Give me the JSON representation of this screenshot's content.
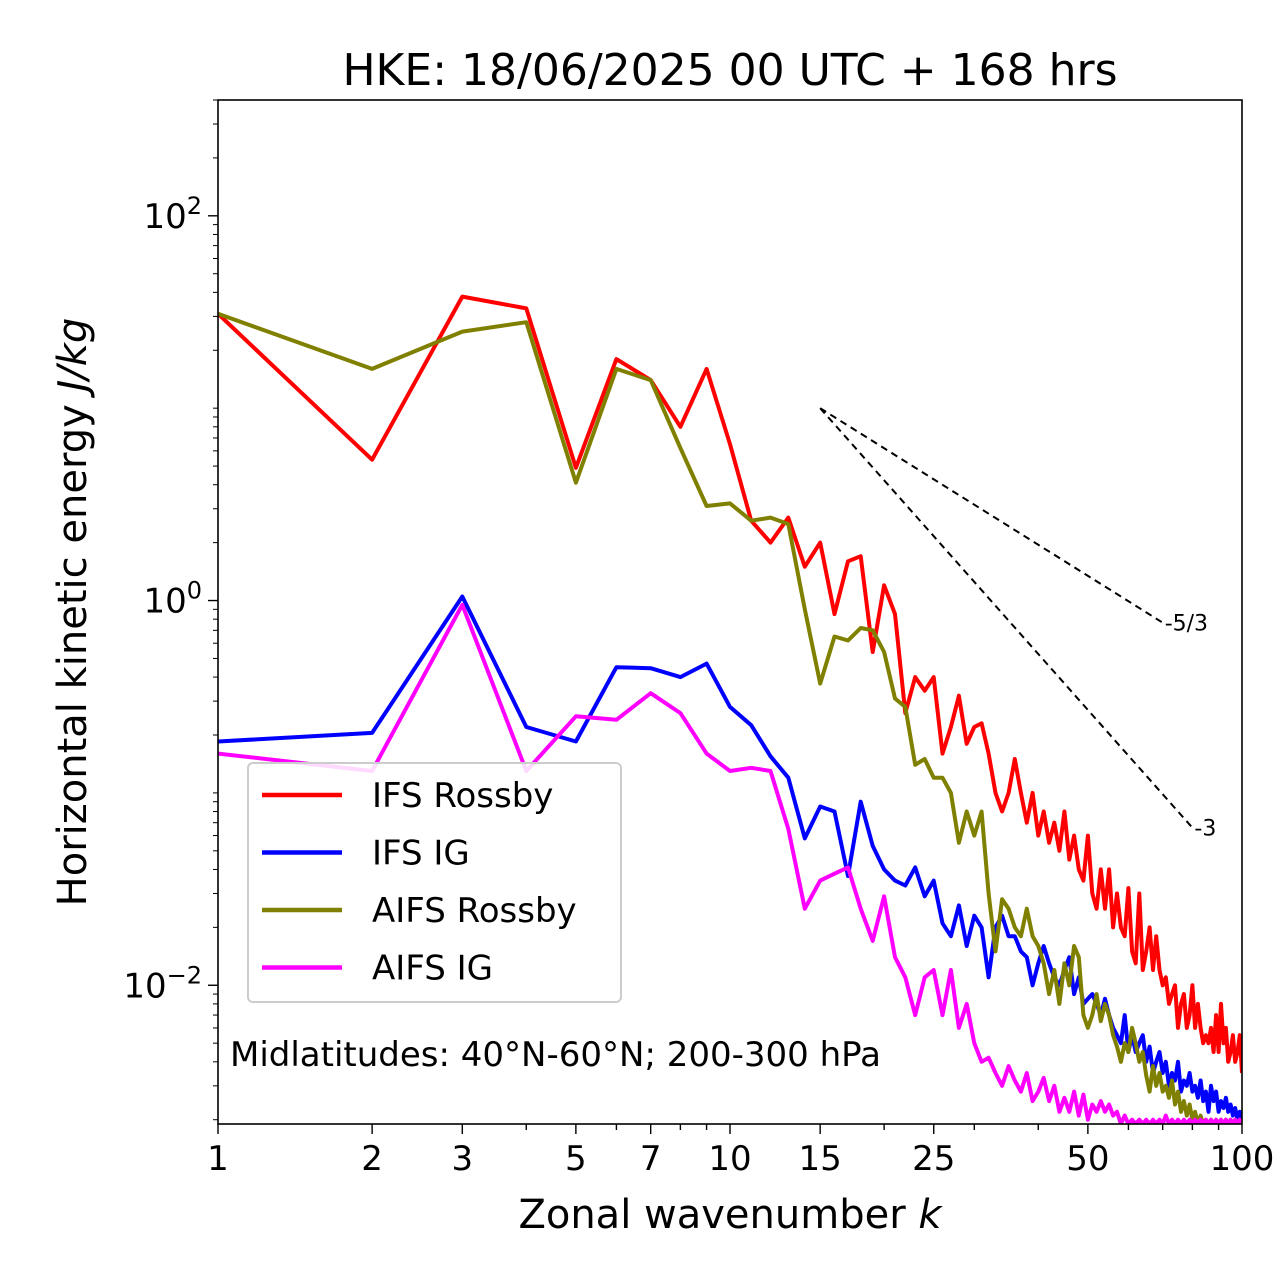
{
  "chart_data": {
    "type": "line",
    "title": "HKE: 18/06/2025 00 UTC + 168 hrs",
    "xlabel_text": "Zonal wavenumber ",
    "xlabel_italic": "k",
    "ylabel_text": "Horizontal kinetic energy ",
    "ylabel_italic": "J/kg",
    "xscale": "log",
    "yscale": "log",
    "xlim": [
      1,
      100
    ],
    "ylim": [
      0.0019,
      400
    ],
    "x_ticks": [
      1,
      2,
      3,
      5,
      7,
      10,
      15,
      25,
      50,
      100
    ],
    "x_tick_labels": [
      "1",
      "2",
      "3",
      "5",
      "7",
      "10",
      "15",
      "25",
      "50",
      "100"
    ],
    "y_ticks": [
      {
        "value": 100,
        "base": "10",
        "exp": "2"
      },
      {
        "value": 1,
        "base": "10",
        "exp": "0"
      },
      {
        "value": 0.01,
        "base": "10",
        "exp": "−2"
      }
    ],
    "annotation": "Midlatitudes: 40°N-60°N; 200-300 hPa",
    "legend_position": "lower-left",
    "reference_slopes": [
      {
        "label": "-5/3",
        "slope": -1.6667,
        "x_start": 15,
        "y_start": 10,
        "x_end": 70
      },
      {
        "label": "-3",
        "slope": -3,
        "x_start": 15,
        "y_start": 10,
        "x_end": 80
      }
    ],
    "series": [
      {
        "name": "IFS Rossby",
        "color": "#ff0000",
        "x": [
          1,
          2,
          3,
          4,
          5,
          6,
          7,
          8,
          9,
          10,
          11,
          12,
          13,
          14,
          15,
          16,
          17,
          18,
          19,
          20,
          21,
          22,
          23,
          24,
          25,
          26,
          27,
          28,
          29,
          30,
          31,
          32,
          33,
          34,
          35,
          36,
          37,
          38,
          39,
          40,
          41,
          42,
          43,
          44,
          45,
          46,
          47,
          48,
          49,
          50,
          51,
          52,
          53,
          54,
          55,
          56,
          57,
          58,
          59,
          60,
          61,
          62,
          63,
          64,
          65,
          66,
          67,
          68,
          69,
          70,
          71,
          72,
          73,
          74,
          75,
          76,
          77,
          78,
          79,
          80,
          81,
          82,
          83,
          84,
          85,
          86,
          87,
          88,
          89,
          90,
          91,
          92,
          93,
          94,
          95,
          96,
          97,
          98,
          99,
          100
        ],
        "y": [
          31,
          5.4,
          38,
          33,
          4.9,
          18,
          14,
          8.0,
          16,
          6.5,
          2.6,
          2.0,
          2.7,
          1.5,
          2.0,
          0.85,
          1.6,
          1.7,
          0.54,
          1.2,
          0.85,
          0.26,
          0.4,
          0.34,
          0.4,
          0.16,
          0.22,
          0.32,
          0.18,
          0.22,
          0.23,
          0.16,
          0.1,
          0.08,
          0.1,
          0.15,
          0.1,
          0.07,
          0.1,
          0.06,
          0.08,
          0.055,
          0.07,
          0.05,
          0.08,
          0.045,
          0.06,
          0.04,
          0.035,
          0.06,
          0.03,
          0.025,
          0.04,
          0.025,
          0.04,
          0.02,
          0.03,
          0.02,
          0.018,
          0.032,
          0.015,
          0.013,
          0.03,
          0.012,
          0.015,
          0.02,
          0.012,
          0.018,
          0.012,
          0.01,
          0.011,
          0.008,
          0.009,
          0.01,
          0.006,
          0.008,
          0.009,
          0.006,
          0.007,
          0.01,
          0.006,
          0.008,
          0.006,
          0.005,
          0.0055,
          0.005,
          0.006,
          0.0045,
          0.007,
          0.0045,
          0.008,
          0.005,
          0.006,
          0.004,
          0.0045,
          0.0055,
          0.004,
          0.0045,
          0.0055,
          0.0035
        ]
      },
      {
        "name": "IFS IG",
        "color": "#0000ff",
        "x": [
          1,
          2,
          3,
          4,
          5,
          6,
          7,
          8,
          9,
          10,
          11,
          12,
          13,
          14,
          15,
          16,
          17,
          18,
          19,
          20,
          21,
          22,
          23,
          24,
          25,
          26,
          27,
          28,
          29,
          30,
          31,
          32,
          33,
          34,
          35,
          36,
          37,
          38,
          39,
          40,
          41,
          42,
          43,
          44,
          45,
          46,
          47,
          48,
          49,
          50,
          51,
          52,
          53,
          54,
          55,
          56,
          57,
          58,
          59,
          60,
          61,
          62,
          63,
          64,
          65,
          66,
          67,
          68,
          69,
          70,
          71,
          72,
          73,
          74,
          75,
          76,
          77,
          78,
          79,
          80,
          81,
          82,
          83,
          84,
          85,
          86,
          87,
          88,
          89,
          90,
          91,
          92,
          93,
          94,
          95,
          96,
          97,
          98,
          99,
          100
        ],
        "y": [
          0.185,
          0.205,
          1.05,
          0.22,
          0.185,
          0.45,
          0.445,
          0.4,
          0.47,
          0.28,
          0.225,
          0.155,
          0.12,
          0.058,
          0.085,
          0.08,
          0.037,
          0.09,
          0.053,
          0.04,
          0.035,
          0.033,
          0.041,
          0.029,
          0.035,
          0.021,
          0.018,
          0.026,
          0.016,
          0.023,
          0.02,
          0.011,
          0.02,
          0.023,
          0.018,
          0.018,
          0.015,
          0.014,
          0.01,
          0.013,
          0.016,
          0.013,
          0.011,
          0.01,
          0.012,
          0.014,
          0.009,
          0.011,
          0.008,
          0.0085,
          0.009,
          0.008,
          0.007,
          0.0085,
          0.007,
          0.006,
          0.0055,
          0.005,
          0.007,
          0.0045,
          0.0055,
          0.0045,
          0.005,
          0.0055,
          0.004,
          0.0048,
          0.0035,
          0.004,
          0.0045,
          0.0035,
          0.004,
          0.003,
          0.0035,
          0.0032,
          0.004,
          0.0028,
          0.0032,
          0.003,
          0.0035,
          0.0028,
          0.003,
          0.0026,
          0.0032,
          0.0025,
          0.0028,
          0.0022,
          0.003,
          0.0025,
          0.0028,
          0.0022,
          0.0025,
          0.0023,
          0.0026,
          0.0022,
          0.0024,
          0.0021,
          0.0023,
          0.002,
          0.0022,
          0.0019
        ]
      },
      {
        "name": "AIFS Rossby",
        "color": "#808000",
        "x": [
          1,
          2,
          3,
          4,
          5,
          6,
          7,
          8,
          9,
          10,
          11,
          12,
          13,
          14,
          15,
          16,
          17,
          18,
          19,
          20,
          21,
          22,
          23,
          24,
          25,
          26,
          27,
          28,
          29,
          30,
          31,
          32,
          33,
          34,
          35,
          36,
          37,
          38,
          39,
          40,
          41,
          42,
          43,
          44,
          45,
          46,
          47,
          48,
          49,
          50,
          51,
          52,
          53,
          54,
          55,
          56,
          57,
          58,
          59,
          60,
          61,
          62,
          63,
          64,
          65,
          66,
          67,
          68,
          69,
          70,
          71,
          72,
          73,
          74,
          75,
          76,
          77,
          78,
          79,
          80,
          81,
          82,
          83,
          84,
          85,
          86,
          87,
          88,
          89,
          90,
          91,
          92,
          93,
          94,
          95,
          96,
          97,
          98,
          99,
          100
        ],
        "y": [
          31,
          16,
          25,
          28,
          4.1,
          16,
          14,
          6.2,
          3.1,
          3.2,
          2.6,
          2.7,
          2.5,
          0.9,
          0.37,
          0.65,
          0.62,
          0.72,
          0.7,
          0.54,
          0.31,
          0.28,
          0.14,
          0.15,
          0.12,
          0.12,
          0.1,
          0.055,
          0.08,
          0.06,
          0.08,
          0.03,
          0.015,
          0.028,
          0.025,
          0.02,
          0.018,
          0.025,
          0.018,
          0.016,
          0.013,
          0.009,
          0.012,
          0.008,
          0.013,
          0.01,
          0.016,
          0.014,
          0.007,
          0.006,
          0.007,
          0.009,
          0.0065,
          0.008,
          0.007,
          0.0055,
          0.0048,
          0.004,
          0.005,
          0.0045,
          0.006,
          0.005,
          0.004,
          0.0045,
          0.0034,
          0.0028,
          0.0038,
          0.003,
          0.0035,
          0.0028,
          0.003,
          0.0026,
          0.0032,
          0.0024,
          0.0028,
          0.0022,
          0.0025,
          0.0021,
          0.0024,
          0.002,
          0.0022,
          0.0019,
          0.0021,
          0.0019,
          0.002,
          0.0019,
          0.002,
          0.0019,
          0.002,
          0.0019,
          0.002,
          0.0019,
          0.002,
          0.0019,
          0.002,
          0.0019,
          0.002,
          0.0019,
          0.002,
          0.0019
        ]
      },
      {
        "name": "AIFS IG",
        "color": "#ff00ff",
        "x": [
          1,
          2,
          3,
          4,
          5,
          6,
          7,
          8,
          9,
          10,
          11,
          12,
          13,
          14,
          15,
          16,
          17,
          18,
          19,
          20,
          21,
          22,
          23,
          24,
          25,
          26,
          27,
          28,
          29,
          30,
          31,
          32,
          33,
          34,
          35,
          36,
          37,
          38,
          39,
          40,
          41,
          42,
          43,
          44,
          45,
          46,
          47,
          48,
          49,
          50,
          51,
          52,
          53,
          54,
          55,
          56,
          57,
          58,
          59,
          60,
          61,
          62,
          63,
          64,
          65,
          66,
          67,
          68,
          69,
          70,
          71,
          72,
          73,
          74,
          75,
          76,
          77,
          78,
          79,
          80,
          81,
          82,
          83,
          84,
          85,
          86,
          87,
          88,
          89,
          90,
          91,
          92,
          93,
          94,
          95,
          96,
          97,
          98,
          99,
          100
        ],
        "y": [
          0.16,
          0.13,
          0.95,
          0.13,
          0.25,
          0.24,
          0.33,
          0.26,
          0.16,
          0.13,
          0.135,
          0.13,
          0.065,
          0.025,
          0.035,
          0.038,
          0.041,
          0.025,
          0.017,
          0.029,
          0.014,
          0.011,
          0.007,
          0.011,
          0.012,
          0.007,
          0.012,
          0.006,
          0.008,
          0.005,
          0.004,
          0.0042,
          0.0035,
          0.003,
          0.0038,
          0.0032,
          0.0028,
          0.0035,
          0.0025,
          0.0028,
          0.0033,
          0.0025,
          0.003,
          0.0022,
          0.0026,
          0.0022,
          0.0028,
          0.0021,
          0.0027,
          0.002,
          0.0024,
          0.0022,
          0.0025,
          0.0022,
          0.0024,
          0.0021,
          0.0022,
          0.0019,
          0.0021,
          0.0019,
          0.002,
          0.0019,
          0.002,
          0.0019,
          0.002,
          0.0019,
          0.002,
          0.0019,
          0.002,
          0.0019,
          0.0021,
          0.0019,
          0.002,
          0.0019,
          0.002,
          0.0019,
          0.002,
          0.0019,
          0.002,
          0.0019,
          0.002,
          0.0019,
          0.002,
          0.0019,
          0.002,
          0.0019,
          0.002,
          0.0019,
          0.002,
          0.0019,
          0.002,
          0.0019,
          0.002,
          0.0019,
          0.002,
          0.0019,
          0.002,
          0.0019,
          0.002,
          0.0019
        ]
      }
    ]
  }
}
